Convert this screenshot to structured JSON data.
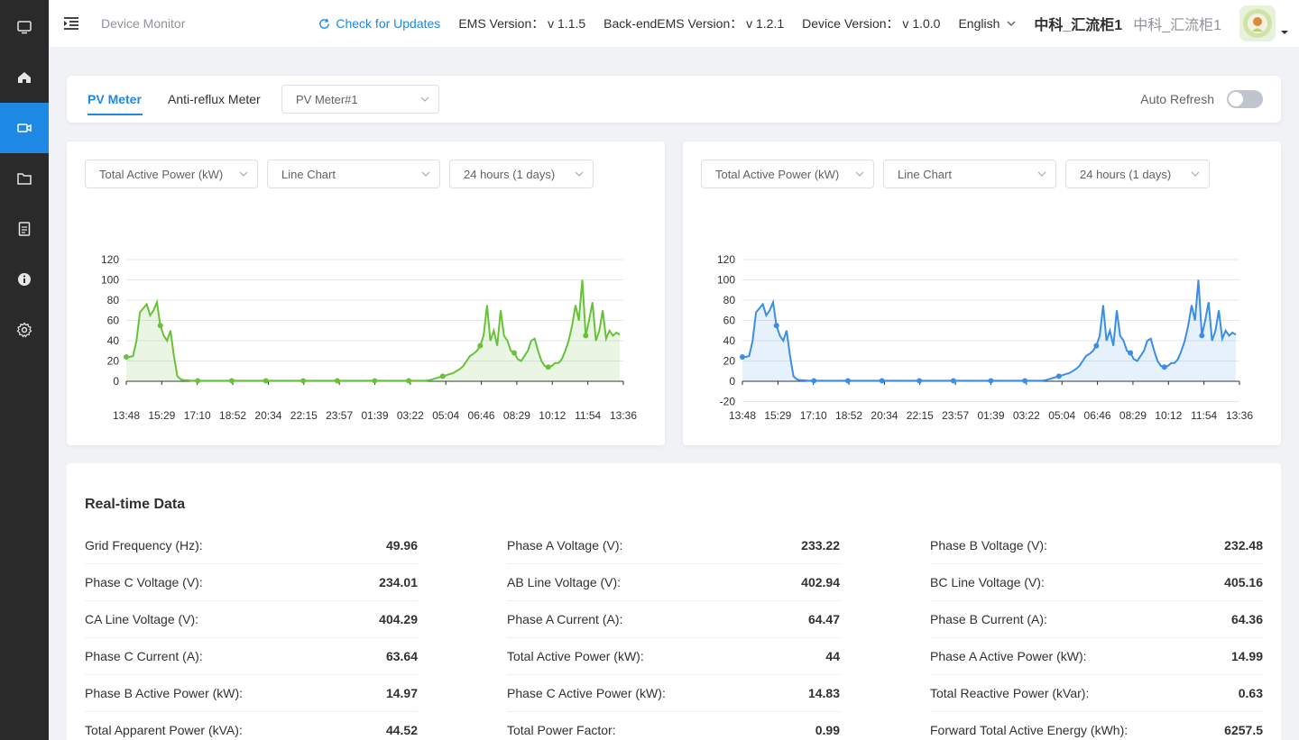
{
  "sidebar": {
    "items": [
      {
        "icon": "monitor-icon",
        "active": false
      },
      {
        "icon": "home-icon",
        "active": false
      },
      {
        "icon": "video-device-icon",
        "active": true
      },
      {
        "icon": "folder-icon",
        "active": false
      },
      {
        "icon": "document-icon",
        "active": false
      },
      {
        "icon": "info-icon",
        "active": false
      },
      {
        "icon": "gear-icon",
        "active": false
      }
    ]
  },
  "header": {
    "title": "Device Monitor",
    "check_updates": "Check for Updates",
    "ems_version": "EMS Version： v 1.1.5",
    "backend_version": "Back-endEMS Version： v 1.2.1",
    "device_version": "Device Version： v 1.0.0",
    "language": "English",
    "site_name": "中科_汇流柜1",
    "site_name_secondary": "中科_汇流柜1"
  },
  "tabs": {
    "pv_meter": "PV Meter",
    "anti_reflux": "Anti-reflux Meter",
    "meter_select": "PV Meter#1",
    "auto_refresh": "Auto Refresh",
    "auto_refresh_on": false
  },
  "charts": {
    "left": {
      "metric": "Total Active Power (kW)",
      "chart_type": "Line Chart",
      "range": "24 hours (1 days)",
      "color": "#67c23a"
    },
    "right": {
      "metric": "Total Active Power (kW)",
      "chart_type": "Line Chart",
      "range": "24 hours (1 days)",
      "color": "#3a8ee6"
    }
  },
  "chart_data": [
    {
      "type": "line",
      "series": [
        {
          "values": [
            24,
            24,
            25,
            40,
            68,
            72,
            76,
            65,
            70,
            78,
            55,
            45,
            40,
            50,
            25,
            5,
            2,
            1,
            1,
            0.5,
            0.5,
            0.5,
            0.5,
            0.5,
            0.5,
            0.5,
            0.5,
            0.5,
            0.5,
            0.5,
            0.5,
            0.5,
            0.5,
            0.5,
            0.5,
            0.5,
            0.5,
            0.5,
            0.5,
            0.5,
            0.5,
            0.5,
            0.5,
            0.5,
            0.5,
            0.5,
            0.5,
            0.5,
            0.5,
            0.5,
            0.5,
            0.5,
            0.5,
            0.5,
            0.5,
            0.5,
            0.5,
            0.5,
            0.5,
            0.5,
            0.5,
            0.5,
            0.5,
            0.5,
            0.5,
            0.5,
            0.5,
            0.5,
            0.5,
            0.5,
            0.5,
            0.5,
            0.5,
            0.5,
            0.5,
            0.5,
            0.5,
            0.5,
            0.5,
            0.5,
            0.5,
            0.5,
            0.5,
            0.5,
            0.5,
            0.5,
            0.5,
            0.5,
            0.5,
            1,
            2,
            3,
            4,
            5,
            6,
            7,
            8,
            10,
            12,
            15,
            20,
            25,
            27,
            30,
            35,
            45,
            75,
            40,
            50,
            35,
            70,
            45,
            40,
            30,
            28,
            22,
            20,
            25,
            30,
            40,
            42,
            30,
            20,
            15,
            14,
            15,
            18,
            18,
            22,
            30,
            40,
            55,
            75,
            60,
            100,
            45,
            60,
            78,
            40,
            50,
            70,
            42,
            50,
            45,
            48,
            46
          ]
        }
      ],
      "x_ticks": [
        "13:48",
        "15:29",
        "17:10",
        "18:52",
        "20:34",
        "22:15",
        "23:57",
        "01:39",
        "03:22",
        "05:04",
        "06:46",
        "08:29",
        "10:12",
        "11:54",
        "13:36"
      ],
      "y_ticks": [
        "120",
        "100",
        "80",
        "60",
        "40",
        "20",
        "0"
      ],
      "ylim": [
        0,
        120
      ]
    },
    {
      "type": "line",
      "series": [
        {
          "values": [
            24,
            24,
            25,
            40,
            68,
            72,
            76,
            65,
            70,
            78,
            55,
            45,
            40,
            50,
            25,
            5,
            2,
            1,
            1,
            0.5,
            0.5,
            0.5,
            0.5,
            0.5,
            0.5,
            0.5,
            0.5,
            0.5,
            0.5,
            0.5,
            0.5,
            0.5,
            0.5,
            0.5,
            0.5,
            0.5,
            0.5,
            0.5,
            0.5,
            0.5,
            0.5,
            0.5,
            0.5,
            0.5,
            0.5,
            0.5,
            0.5,
            0.5,
            0.5,
            0.5,
            0.5,
            0.5,
            0.5,
            0.5,
            0.5,
            0.5,
            0.5,
            0.5,
            0.5,
            0.5,
            0.5,
            0.5,
            0.5,
            0.5,
            0.5,
            0.5,
            0.5,
            0.5,
            0.5,
            0.5,
            0.5,
            0.5,
            0.5,
            0.5,
            0.5,
            0.5,
            0.5,
            0.5,
            0.5,
            0.5,
            0.5,
            0.5,
            0.5,
            0.5,
            0.5,
            0.5,
            0.5,
            0.5,
            0.5,
            1,
            2,
            3,
            4,
            5,
            6,
            7,
            8,
            10,
            12,
            15,
            20,
            25,
            27,
            30,
            35,
            45,
            75,
            40,
            50,
            35,
            70,
            45,
            40,
            30,
            28,
            22,
            20,
            25,
            30,
            40,
            42,
            30,
            20,
            15,
            14,
            15,
            18,
            18,
            22,
            30,
            40,
            55,
            75,
            60,
            100,
            45,
            60,
            78,
            40,
            50,
            70,
            42,
            50,
            45,
            48,
            46
          ]
        }
      ],
      "x_ticks": [
        "13:48",
        "15:29",
        "17:10",
        "18:52",
        "20:34",
        "22:15",
        "23:57",
        "01:39",
        "03:22",
        "05:04",
        "06:46",
        "08:29",
        "10:12",
        "11:54",
        "13:36"
      ],
      "y_ticks": [
        "120",
        "100",
        "80",
        "60",
        "40",
        "20",
        "0",
        "-20"
      ],
      "ylim": [
        -20,
        120
      ]
    }
  ],
  "realtime": {
    "title": "Real-time Data",
    "rows": [
      [
        {
          "label": "Grid Frequency (Hz):",
          "value": "49.96"
        },
        {
          "label": "Phase A Voltage (V):",
          "value": "233.22"
        },
        {
          "label": "Phase B Voltage (V):",
          "value": "232.48"
        }
      ],
      [
        {
          "label": "Phase C Voltage (V):",
          "value": "234.01"
        },
        {
          "label": "AB Line Voltage (V):",
          "value": "402.94"
        },
        {
          "label": "BC Line Voltage (V):",
          "value": "405.16"
        }
      ],
      [
        {
          "label": "CA Line Voltage (V):",
          "value": "404.29"
        },
        {
          "label": "Phase A Current (A):",
          "value": "64.47"
        },
        {
          "label": "Phase B Current (A):",
          "value": "64.36"
        }
      ],
      [
        {
          "label": "Phase C Current (A):",
          "value": "63.64"
        },
        {
          "label": "Total Active Power (kW):",
          "value": "44"
        },
        {
          "label": "Phase A Active Power (kW):",
          "value": "14.99"
        }
      ],
      [
        {
          "label": "Phase B Active Power (kW):",
          "value": "14.97"
        },
        {
          "label": "Phase C Active Power (kW):",
          "value": "14.83"
        },
        {
          "label": "Total Reactive Power (kVar):",
          "value": "0.63"
        }
      ],
      [
        {
          "label": "Total Apparent Power (kVA):",
          "value": "44.52"
        },
        {
          "label": "Total Power Factor:",
          "value": "0.99"
        },
        {
          "label": "Forward Total Active Energy (kWh):",
          "value": "6257.5"
        }
      ]
    ]
  }
}
